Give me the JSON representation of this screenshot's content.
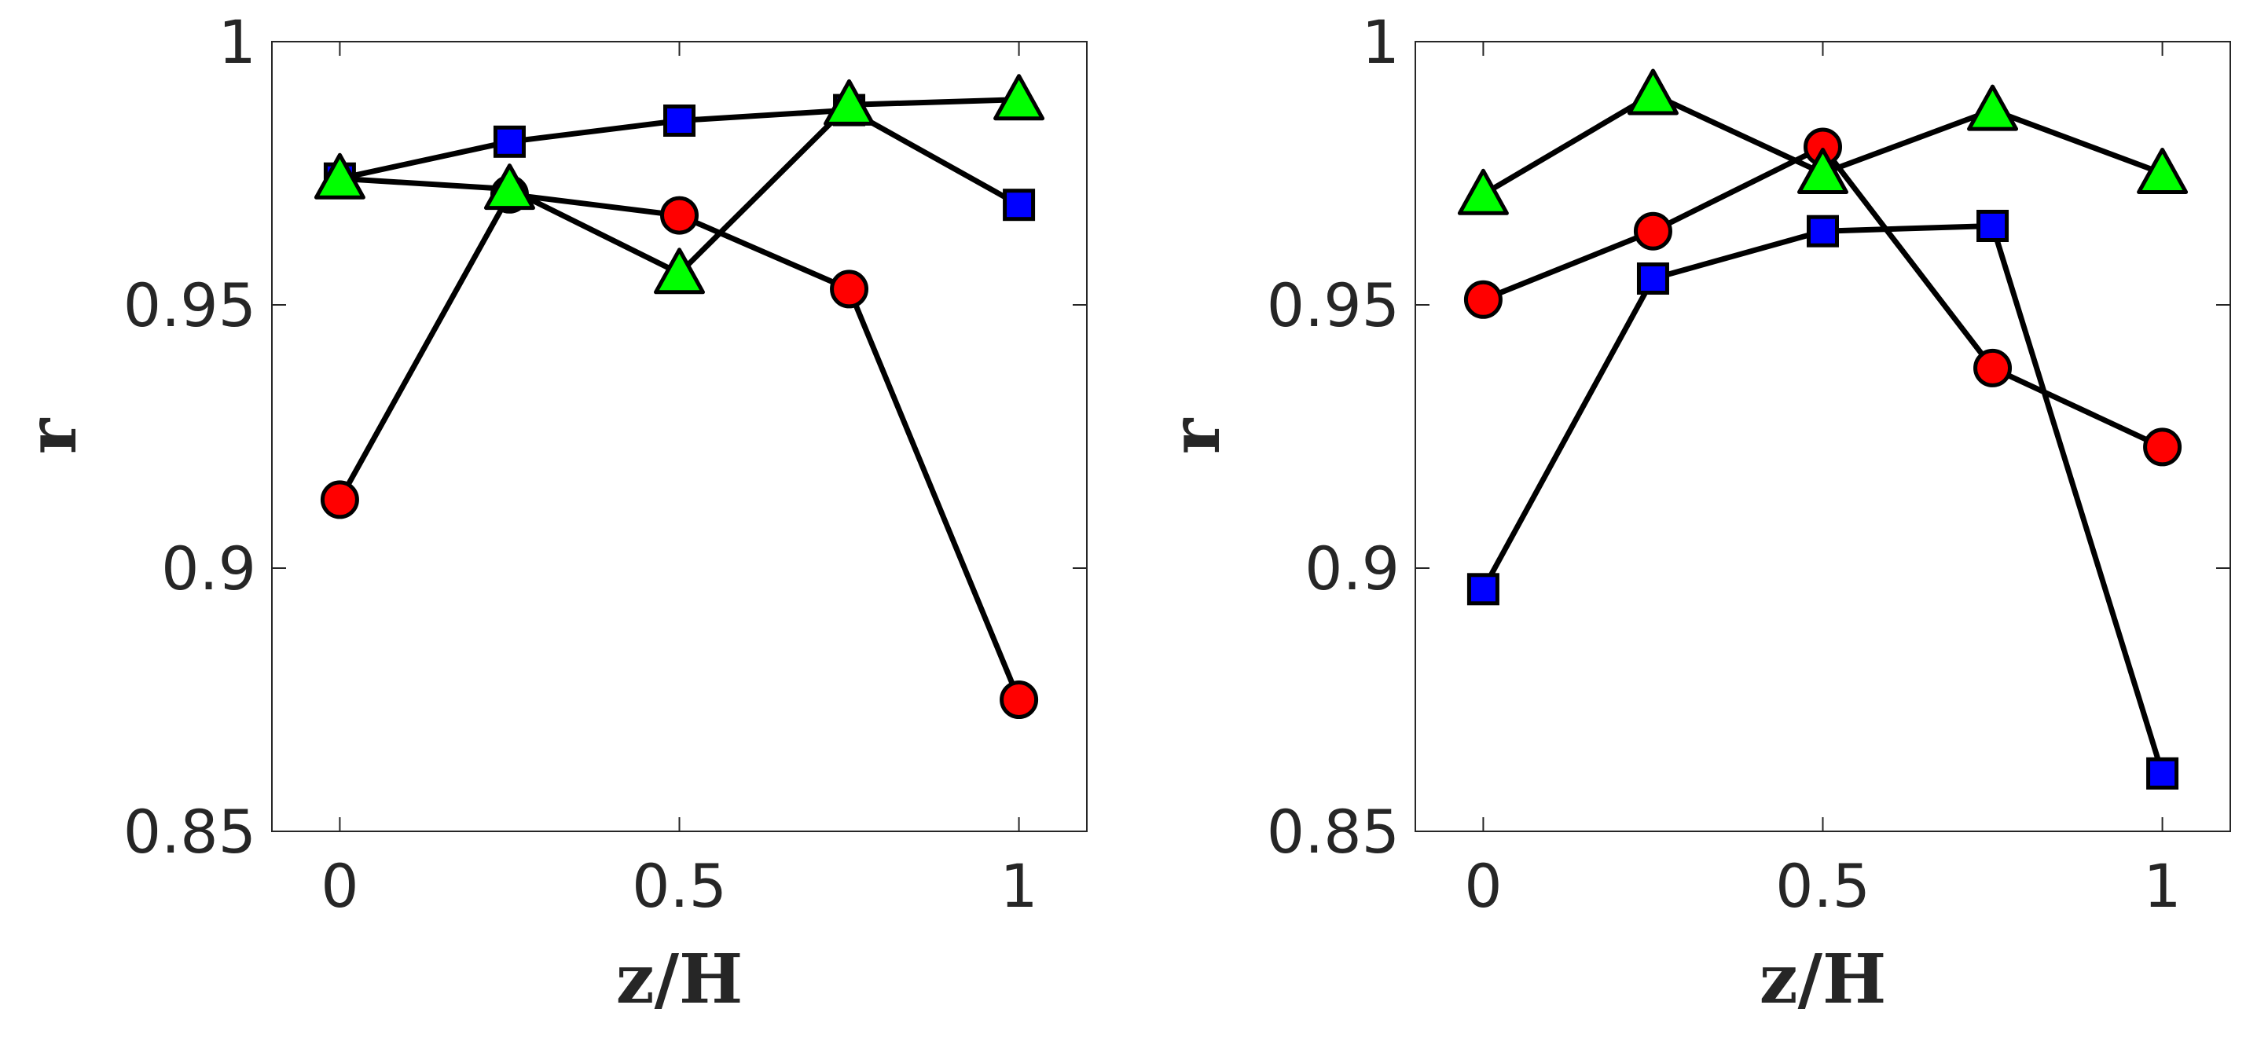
{
  "chart_data": [
    {
      "type": "line",
      "title": "",
      "xlabel": "z/H",
      "ylabel": "r",
      "xlim": [
        -0.1,
        1.1
      ],
      "ylim": [
        0.85,
        1.0
      ],
      "xticks": [
        0,
        0.5,
        1
      ],
      "xtick_labels": [
        "0",
        "0.5",
        "1"
      ],
      "yticks": [
        0.85,
        0.9,
        0.95,
        1.0
      ],
      "ytick_labels": [
        "0.85",
        "0.9",
        "0.95",
        "1"
      ],
      "grid": false,
      "x": [
        0,
        0.25,
        0.5,
        0.75,
        1.0
      ],
      "series": [
        {
          "marker": "circle",
          "color": "#ff0000",
          "values": [
            0.913,
            0.971,
            0.967,
            0.953,
            0.875
          ]
        },
        {
          "marker": "square",
          "color": "#0000ff",
          "values": [
            0.974,
            0.981,
            0.985,
            0.987,
            0.969
          ]
        },
        {
          "marker": "triangle",
          "color": "#00ff00",
          "values": [
            0.974,
            0.972,
            0.956,
            0.988,
            0.989
          ]
        }
      ]
    },
    {
      "type": "line",
      "title": "",
      "xlabel": "z/H",
      "ylabel": "r",
      "xlim": [
        -0.1,
        1.1
      ],
      "ylim": [
        0.85,
        1.0
      ],
      "xticks": [
        0,
        0.5,
        1
      ],
      "xtick_labels": [
        "0",
        "0.5",
        "1"
      ],
      "yticks": [
        0.85,
        0.9,
        0.95,
        1.0
      ],
      "ytick_labels": [
        "0.85",
        "0.9",
        "0.95",
        "1"
      ],
      "grid": false,
      "x": [
        0,
        0.25,
        0.5,
        0.75,
        1.0
      ],
      "series": [
        {
          "marker": "circle",
          "color": "#ff0000",
          "values": [
            0.951,
            0.964,
            0.98,
            0.938,
            0.923
          ]
        },
        {
          "marker": "square",
          "color": "#0000ff",
          "values": [
            0.896,
            0.955,
            0.964,
            0.965,
            0.861
          ]
        },
        {
          "marker": "triangle",
          "color": "#00ff00",
          "values": [
            0.971,
            0.99,
            0.975,
            0.987,
            0.975
          ]
        }
      ]
    }
  ]
}
